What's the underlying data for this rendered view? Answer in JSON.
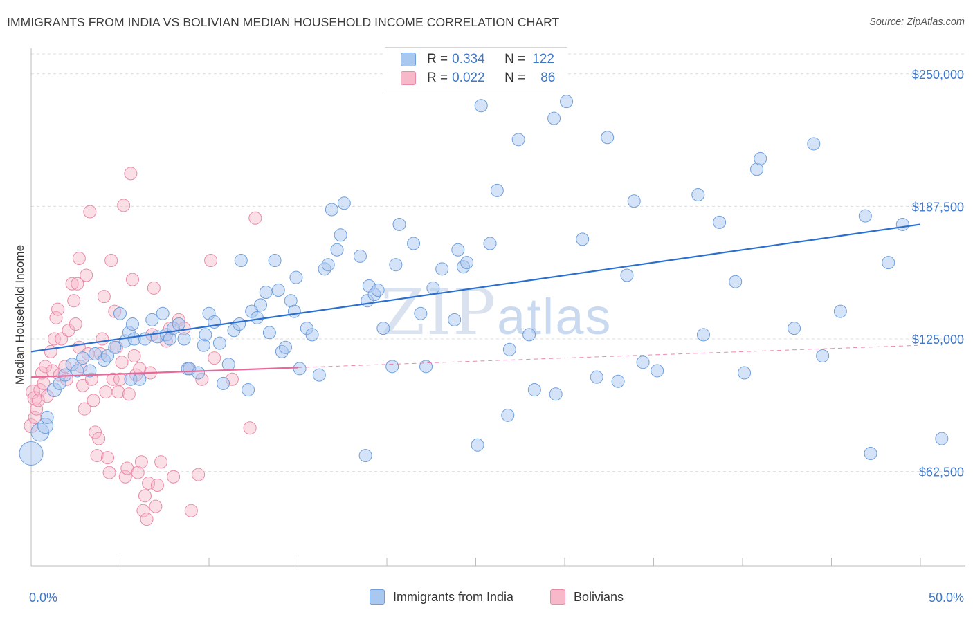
{
  "header": {
    "title": "IMMIGRANTS FROM INDIA VS BOLIVIAN MEDIAN HOUSEHOLD INCOME CORRELATION CHART",
    "source": "Source: ZipAtlas.com"
  },
  "watermark": {
    "zip": "ZIP",
    "atlas": "atlas"
  },
  "legend": {
    "series1": {
      "r_label": "R = ",
      "r_value": "0.334",
      "n_label": "N = ",
      "n_value": "122",
      "color": "#a9c8f0"
    },
    "series2": {
      "r_label": "R = ",
      "r_value": "0.022",
      "n_label": "N = ",
      "n_value": "86",
      "color": "#f7b9ca"
    }
  },
  "bottom_legend": {
    "india": "Immigrants from India",
    "bolivians": "Bolivians"
  },
  "colors": {
    "india_fill": "#a9c8f0",
    "india_stroke": "#6e9fdc",
    "india_line": "#2a6fd0",
    "bol_fill": "#f7b9ca",
    "bol_stroke": "#ea8aa6",
    "bol_line": "#e8689a",
    "grid": "#dcdcdc",
    "label_blue": "#3f78c8"
  },
  "chart_data": {
    "type": "scatter",
    "title": "IMMIGRANTS FROM INDIA VS BOLIVIAN MEDIAN HOUSEHOLD INCOME CORRELATION CHART",
    "xlabel": "",
    "ylabel": "Median Household Income",
    "xlim": [
      0,
      50
    ],
    "ylim": [
      18000,
      262000
    ],
    "x_tick_labels": [
      "0.0%",
      "50.0%"
    ],
    "y_ticks": [
      62500,
      125000,
      187500,
      250000
    ],
    "y_tick_labels": [
      "$62,500",
      "$125,000",
      "$187,500",
      "$250,000"
    ],
    "grid": true,
    "series": [
      {
        "name": "Immigrants from India",
        "r": 0.334,
        "n": 122,
        "trend": {
          "x": [
            0,
            50
          ],
          "y": [
            119000,
            179000
          ],
          "dashed_from": null
        },
        "points": [
          [
            0.0,
            71000,
            16
          ],
          [
            0.5,
            81000,
            12
          ],
          [
            0.8,
            84000,
            10
          ],
          [
            0.9,
            88000,
            8
          ],
          [
            1.3,
            101000,
            9
          ],
          [
            1.6,
            104000,
            8
          ],
          [
            1.9,
            108000,
            8
          ],
          [
            2.3,
            113000,
            8
          ],
          [
            2.6,
            110000,
            8
          ],
          [
            2.9,
            116000,
            8
          ],
          [
            3.3,
            110000,
            8
          ],
          [
            3.6,
            118000,
            8
          ],
          [
            4.1,
            115000,
            8
          ],
          [
            4.3,
            117000,
            8
          ],
          [
            4.7,
            121000,
            8
          ],
          [
            5.0,
            137000,
            8
          ],
          [
            5.3,
            124000,
            8
          ],
          [
            5.5,
            128000,
            8
          ],
          [
            5.7,
            132000,
            8
          ],
          [
            5.8,
            125000,
            8
          ],
          [
            5.6,
            106000,
            8
          ],
          [
            6.1,
            106000,
            8
          ],
          [
            6.4,
            125000,
            8
          ],
          [
            6.8,
            134000,
            8
          ],
          [
            7.1,
            126000,
            8
          ],
          [
            7.4,
            137000,
            8
          ],
          [
            7.6,
            127000,
            8
          ],
          [
            7.8,
            125000,
            8
          ],
          [
            8.0,
            130000,
            8
          ],
          [
            8.3,
            132000,
            8
          ],
          [
            8.6,
            125000,
            8
          ],
          [
            8.8,
            111000,
            8
          ],
          [
            8.9,
            111000,
            8
          ],
          [
            9.4,
            109000,
            8
          ],
          [
            9.7,
            122000,
            8
          ],
          [
            9.8,
            127000,
            8
          ],
          [
            10.0,
            137000,
            8
          ],
          [
            10.3,
            133000,
            8
          ],
          [
            10.6,
            123000,
            8
          ],
          [
            10.8,
            104000,
            8
          ],
          [
            11.1,
            113000,
            8
          ],
          [
            11.4,
            129000,
            8
          ],
          [
            11.7,
            132000,
            8
          ],
          [
            11.8,
            162000,
            8
          ],
          [
            12.2,
            101000,
            8
          ],
          [
            12.4,
            138000,
            8
          ],
          [
            12.7,
            135000,
            8
          ],
          [
            12.9,
            141000,
            8
          ],
          [
            13.2,
            147000,
            8
          ],
          [
            13.4,
            128000,
            8
          ],
          [
            13.7,
            162000,
            8
          ],
          [
            13.9,
            148000,
            8
          ],
          [
            14.1,
            119000,
            8
          ],
          [
            14.3,
            121000,
            8
          ],
          [
            14.6,
            143000,
            8
          ],
          [
            14.8,
            138000,
            8
          ],
          [
            14.9,
            154000,
            8
          ],
          [
            15.5,
            130000,
            8
          ],
          [
            15.8,
            127000,
            8
          ],
          [
            15.1,
            111000,
            8
          ],
          [
            16.2,
            108000,
            8
          ],
          [
            16.5,
            158000,
            8
          ],
          [
            16.7,
            160000,
            8
          ],
          [
            16.9,
            186000,
            8
          ],
          [
            17.2,
            167000,
            8
          ],
          [
            17.4,
            174000,
            8
          ],
          [
            17.6,
            189000,
            8
          ],
          [
            18.5,
            164000,
            8
          ],
          [
            18.8,
            70000,
            8
          ],
          [
            18.9,
            143000,
            8
          ],
          [
            19.0,
            150000,
            8
          ],
          [
            19.3,
            146000,
            8
          ],
          [
            19.5,
            148000,
            8
          ],
          [
            19.8,
            130000,
            8
          ],
          [
            20.3,
            112000,
            8
          ],
          [
            20.5,
            160000,
            8
          ],
          [
            20.7,
            179000,
            8
          ],
          [
            21.5,
            170000,
            8
          ],
          [
            21.9,
            137000,
            8
          ],
          [
            22.2,
            112000,
            8
          ],
          [
            22.6,
            149000,
            8
          ],
          [
            23.1,
            158000,
            8
          ],
          [
            23.8,
            134000,
            8
          ],
          [
            24.0,
            167000,
            8
          ],
          [
            24.3,
            159000,
            8
          ],
          [
            24.5,
            161000,
            8
          ],
          [
            25.1,
            75000,
            8
          ],
          [
            25.3,
            235000,
            8
          ],
          [
            25.8,
            170000,
            8
          ],
          [
            26.2,
            195000,
            8
          ],
          [
            26.8,
            89000,
            8
          ],
          [
            26.9,
            120000,
            8
          ],
          [
            27.4,
            219000,
            8
          ],
          [
            28.0,
            127000,
            8
          ],
          [
            28.3,
            101000,
            8
          ],
          [
            29.4,
            229000,
            8
          ],
          [
            29.5,
            99000,
            8
          ],
          [
            30.1,
            237000,
            8
          ],
          [
            31.0,
            172000,
            8
          ],
          [
            31.8,
            107000,
            8
          ],
          [
            32.4,
            220000,
            8
          ],
          [
            33.0,
            105000,
            8
          ],
          [
            33.5,
            155000,
            8
          ],
          [
            33.9,
            190000,
            8
          ],
          [
            34.4,
            114000,
            8
          ],
          [
            35.2,
            110000,
            8
          ],
          [
            37.5,
            193000,
            8
          ],
          [
            37.8,
            127000,
            8
          ],
          [
            38.7,
            180000,
            8
          ],
          [
            39.6,
            152000,
            8
          ],
          [
            40.1,
            109000,
            8
          ],
          [
            40.8,
            205000,
            8
          ],
          [
            41.0,
            210000,
            8
          ],
          [
            42.9,
            130000,
            8
          ],
          [
            44.0,
            217000,
            8
          ],
          [
            44.5,
            117000,
            8
          ],
          [
            45.5,
            138000,
            8
          ],
          [
            46.9,
            183000,
            8
          ],
          [
            47.2,
            71000,
            8
          ],
          [
            48.2,
            161000,
            8
          ],
          [
            49.0,
            179000,
            8
          ],
          [
            51.2,
            78000,
            8
          ]
        ]
      },
      {
        "name": "Bolivians",
        "r": 0.022,
        "n": 86,
        "trend": {
          "x": [
            0,
            50
          ],
          "y": [
            107000,
            122000
          ],
          "solid_until": 15
        },
        "points": [
          [
            0.0,
            84000,
            9
          ],
          [
            0.1,
            100000,
            9
          ],
          [
            0.2,
            97000,
            9
          ],
          [
            0.2,
            88000,
            8
          ],
          [
            0.3,
            92000,
            8
          ],
          [
            0.4,
            96000,
            8
          ],
          [
            0.5,
            101000,
            8
          ],
          [
            0.6,
            109000,
            8
          ],
          [
            0.7,
            104000,
            8
          ],
          [
            0.8,
            112000,
            8
          ],
          [
            0.9,
            98000,
            8
          ],
          [
            1.1,
            119000,
            8
          ],
          [
            1.2,
            110000,
            8
          ],
          [
            1.3,
            125000,
            8
          ],
          [
            1.4,
            135000,
            8
          ],
          [
            1.5,
            139000,
            8
          ],
          [
            1.6,
            108000,
            8
          ],
          [
            1.7,
            125000,
            8
          ],
          [
            1.9,
            112000,
            8
          ],
          [
            2.0,
            106000,
            8
          ],
          [
            2.1,
            129000,
            8
          ],
          [
            2.3,
            151000,
            8
          ],
          [
            2.4,
            143000,
            8
          ],
          [
            2.5,
            132000,
            8
          ],
          [
            2.6,
            151000,
            8
          ],
          [
            2.7,
            163000,
            8
          ],
          [
            2.7,
            121000,
            8
          ],
          [
            2.8,
            112000,
            8
          ],
          [
            2.9,
            103000,
            8
          ],
          [
            3.0,
            92000,
            8
          ],
          [
            3.1,
            155000,
            8
          ],
          [
            3.2,
            118000,
            8
          ],
          [
            3.3,
            185000,
            8
          ],
          [
            3.4,
            106000,
            8
          ],
          [
            3.5,
            96000,
            8
          ],
          [
            3.6,
            81000,
            8
          ],
          [
            3.7,
            70000,
            8
          ],
          [
            3.8,
            78000,
            8
          ],
          [
            3.9,
            118000,
            8
          ],
          [
            4.0,
            125000,
            8
          ],
          [
            4.1,
            145000,
            8
          ],
          [
            4.2,
            100000,
            8
          ],
          [
            4.3,
            69000,
            8
          ],
          [
            4.4,
            62000,
            8
          ],
          [
            4.5,
            162000,
            8
          ],
          [
            4.6,
            106000,
            8
          ],
          [
            4.7,
            138000,
            8
          ],
          [
            4.8,
            121000,
            8
          ],
          [
            4.9,
            100000,
            8
          ],
          [
            5.0,
            106000,
            8
          ],
          [
            5.1,
            114000,
            8
          ],
          [
            5.2,
            188000,
            8
          ],
          [
            5.3,
            60000,
            8
          ],
          [
            5.4,
            64000,
            8
          ],
          [
            5.5,
            99000,
            8
          ],
          [
            5.6,
            203000,
            8
          ],
          [
            5.7,
            153000,
            8
          ],
          [
            5.8,
            117000,
            8
          ],
          [
            5.9,
            108000,
            8
          ],
          [
            6.0,
            62000,
            8
          ],
          [
            6.1,
            111000,
            8
          ],
          [
            6.2,
            67000,
            8
          ],
          [
            6.3,
            44000,
            8
          ],
          [
            6.4,
            51000,
            8
          ],
          [
            6.5,
            40000,
            8
          ],
          [
            6.6,
            57000,
            8
          ],
          [
            6.7,
            109000,
            8
          ],
          [
            6.8,
            127000,
            8
          ],
          [
            6.9,
            149000,
            8
          ],
          [
            7.0,
            46000,
            8
          ],
          [
            7.1,
            56000,
            8
          ],
          [
            7.3,
            67000,
            8
          ],
          [
            7.6,
            124000,
            8
          ],
          [
            7.8,
            130000,
            8
          ],
          [
            8.0,
            60000,
            8
          ],
          [
            8.3,
            134000,
            8
          ],
          [
            8.6,
            130000,
            8
          ],
          [
            8.9,
            111000,
            8
          ],
          [
            9.0,
            44000,
            8
          ],
          [
            9.4,
            61000,
            8
          ],
          [
            9.6,
            106000,
            8
          ],
          [
            10.1,
            162000,
            8
          ],
          [
            10.3,
            116000,
            8
          ],
          [
            11.3,
            106000,
            8
          ],
          [
            12.3,
            83000,
            8
          ],
          [
            12.6,
            182000,
            8
          ]
        ]
      }
    ]
  }
}
